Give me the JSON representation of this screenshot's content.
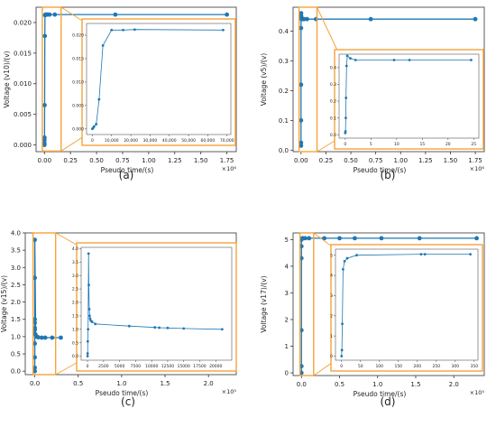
{
  "chart_data": [
    {
      "type": "line",
      "panel_label": "(a)",
      "ylabel": "Voltage (v10)/(v)",
      "xlabel": "Pseudo time/(s)",
      "x_offset_text": "×10⁶",
      "color": "#1f77b4",
      "frame_color": "#f5a33a",
      "xlim": [
        -0.08,
        1.84
      ],
      "ylim": [
        -0.0011,
        0.0225
      ],
      "xticks": [
        0.0,
        0.25,
        0.5,
        0.75,
        1.0,
        1.25,
        1.5,
        1.75
      ],
      "xtick_labels": [
        "0.00",
        "0.25",
        "0.50",
        "0.75",
        "1.00",
        "1.25",
        "1.50",
        "1.75"
      ],
      "yticks": [
        0.0,
        0.005,
        0.01,
        0.015,
        0.02
      ],
      "ytick_labels": [
        "0.000",
        "0.005",
        "0.010",
        "0.015",
        "0.020"
      ],
      "x": [
        0,
        0,
        0,
        0,
        0.001,
        0.002,
        0.004,
        0.006,
        0.01,
        0.02,
        0.03,
        0.05,
        0.1,
        0.68,
        1.75
      ],
      "y": [
        0.0,
        0.0001,
        0.0003,
        0.0008,
        0.0012,
        0.0065,
        0.0178,
        0.0212,
        0.0213,
        0.0213,
        0.0213,
        0.0213,
        0.0213,
        0.0213,
        0.0213
      ],
      "zoom_region": {
        "x": [
          -0.02,
          0.16
        ],
        "y": [
          -0.001,
          0.0225
        ]
      },
      "inset": {
        "xlim": [
          -3000,
          72000
        ],
        "ylim": [
          -0.0012,
          0.0225
        ],
        "xticks": [
          0,
          10000,
          20000,
          30000,
          40000,
          50000,
          60000,
          70000
        ],
        "xtick_labels": [
          "0",
          "10,000",
          "20,000",
          "30,000",
          "40,000",
          "50,000",
          "60,000",
          "70,000"
        ],
        "yticks": [
          0.0,
          0.005,
          0.01,
          0.015,
          0.02
        ],
        "ytick_labels": [
          "0.000",
          "0.005",
          "0.010",
          "0.015",
          "0.020"
        ],
        "x": [
          0,
          400,
          900,
          2000,
          3500,
          5500,
          10000,
          16000,
          22000,
          68000
        ],
        "y": [
          0.0,
          0.0002,
          0.0005,
          0.001,
          0.0063,
          0.0178,
          0.0211,
          0.0211,
          0.0212,
          0.0211
        ]
      }
    },
    {
      "type": "line",
      "panel_label": "(b)",
      "ylabel": "Voltage (v5)/(v)",
      "xlabel": "Pseudo time/(s)",
      "x_offset_text": "×10⁶",
      "color": "#1f77b4",
      "frame_color": "#f5a33a",
      "xlim": [
        -0.08,
        1.84
      ],
      "ylim": [
        -0.005,
        0.48
      ],
      "xticks": [
        0.0,
        0.25,
        0.5,
        0.75,
        1.0,
        1.25,
        1.5,
        1.75
      ],
      "xtick_labels": [
        "0.00",
        "0.25",
        "0.50",
        "0.75",
        "1.00",
        "1.25",
        "1.50",
        "1.75"
      ],
      "yticks": [
        0.0,
        0.1,
        0.2,
        0.3,
        0.4
      ],
      "ytick_labels": [
        "0.0",
        "0.1",
        "0.2",
        "0.3",
        "0.4"
      ],
      "x": [
        0,
        0,
        0,
        0,
        0,
        0.001,
        0.002,
        0.003,
        0.005,
        0.01,
        0.03,
        0.06,
        0.15,
        0.7,
        1.75
      ],
      "y": [
        0.015,
        0.025,
        0.1,
        0.22,
        0.41,
        0.46,
        0.45,
        0.445,
        0.44,
        0.44,
        0.44,
        0.44,
        0.44,
        0.44,
        0.44
      ],
      "zoom_region": {
        "x": [
          -0.02,
          0.16
        ],
        "y": [
          -0.005,
          0.48
        ]
      },
      "inset": {
        "xlim": [
          -1.2,
          26
        ],
        "ylim": [
          -0.02,
          0.48
        ],
        "xticks": [
          0,
          5,
          10,
          15,
          20,
          25
        ],
        "xtick_labels": [
          "0",
          "5",
          "10",
          "15",
          "20",
          "25"
        ],
        "yticks": [
          0.0,
          0.1,
          0.2,
          0.3,
          0.4
        ],
        "ytick_labels": [
          "0.0",
          "0.1",
          "0.2",
          "0.3",
          "0.4"
        ],
        "x": [
          0,
          0.05,
          0.1,
          0.15,
          0.25,
          0.4,
          1.0,
          2.0,
          9.5,
          12.5,
          24.5
        ],
        "y": [
          0.01,
          0.02,
          0.1,
          0.22,
          0.41,
          0.47,
          0.455,
          0.445,
          0.445,
          0.445,
          0.445
        ]
      }
    },
    {
      "type": "line",
      "panel_label": "(c)",
      "ylabel": "Voltage (v15)/(v)",
      "xlabel": "Pseudo time/(s)",
      "x_offset_text": "×10⁵",
      "color": "#1f77b4",
      "frame_color": "#f5a33a",
      "xlim": [
        -0.11,
        2.32
      ],
      "ylim": [
        -0.1,
        4.0
      ],
      "xticks": [
        0.0,
        0.5,
        1.0,
        1.5,
        2.0
      ],
      "xtick_labels": [
        "0.0",
        "0.5",
        "1.0",
        "1.5",
        "2.0"
      ],
      "yticks": [
        0.0,
        0.5,
        1.0,
        1.5,
        2.0,
        2.5,
        3.0,
        3.5,
        4.0
      ],
      "ytick_labels": [
        "0.0",
        "0.5",
        "1.0",
        "1.5",
        "2.0",
        "2.5",
        "3.0",
        "3.5",
        "4.0"
      ],
      "x": [
        0,
        0,
        0,
        0,
        0,
        0,
        0,
        0,
        0,
        0,
        0,
        0.01,
        0.02,
        0.04,
        0.08,
        0.12,
        0.2,
        0.3
      ],
      "y": [
        0.0,
        0.1,
        0.4,
        0.8,
        1.25,
        1.4,
        1.5,
        1.2,
        1.08,
        2.7,
        3.8,
        1.05,
        1.0,
        0.98,
        0.97,
        0.97,
        0.97,
        0.97
      ],
      "zoom_region": {
        "x": [
          -0.02,
          0.24
        ],
        "y": [
          -0.1,
          4.0
        ]
      },
      "inset": {
        "xlim": [
          -1000,
          22500
        ],
        "ylim": [
          -0.15,
          4.05
        ],
        "xticks": [
          0,
          2500,
          5000,
          7500,
          10000,
          12500,
          15000,
          17500,
          20000
        ],
        "xtick_labels": [
          "0",
          "2500",
          "5000",
          "7500",
          "10000",
          "12500",
          "15000",
          "17500",
          "20000"
        ],
        "yticks": [
          0.0,
          0.5,
          1.0,
          1.5,
          2.0,
          2.5,
          3.0,
          3.5,
          4.0
        ],
        "ytick_labels": [
          "0.0",
          "0.5",
          "1.0",
          "1.5",
          "2.0",
          "2.5",
          "3.0",
          "3.5",
          "4.0"
        ],
        "x": [
          0,
          10,
          30,
          80,
          150,
          200,
          260,
          320,
          400,
          500,
          700,
          1200,
          6500,
          10500,
          11200,
          12500,
          15000,
          21000
        ],
        "y": [
          0.0,
          0.1,
          0.55,
          1.0,
          3.82,
          2.65,
          1.75,
          1.5,
          1.4,
          1.32,
          1.28,
          1.2,
          1.12,
          1.07,
          1.06,
          1.05,
          1.03,
          1.0
        ]
      }
    },
    {
      "type": "line",
      "panel_label": "(d)",
      "ylabel": "Voltage (v17)/(v)",
      "xlabel": "Pseudo time/(s)",
      "x_offset_text": "×10⁵",
      "color": "#1f77b4",
      "frame_color": "#f5a33a",
      "xlim": [
        -0.11,
        2.4
      ],
      "ylim": [
        -0.1,
        5.25
      ],
      "xticks": [
        0.0,
        0.5,
        1.0,
        1.5,
        2.0
      ],
      "xtick_labels": [
        "0.0",
        "0.5",
        "1.0",
        "1.5",
        "2.0"
      ],
      "yticks": [
        0,
        1,
        2,
        3,
        4,
        5
      ],
      "ytick_labels": [
        "0",
        "1",
        "2",
        "3",
        "4",
        "5"
      ],
      "x": [
        0,
        0,
        0,
        0,
        0,
        0,
        0.01,
        0.02,
        0.05,
        0.1,
        0.3,
        0.5,
        0.7,
        1.05,
        1.55,
        2.3
      ],
      "y": [
        0.0,
        0.25,
        1.6,
        4.3,
        4.75,
        5.0,
        5.05,
        5.05,
        5.05,
        5.05,
        5.05,
        5.05,
        5.05,
        5.05,
        5.05,
        5.05
      ],
      "zoom_region": {
        "x": [
          -0.02,
          0.16
        ],
        "y": [
          -0.1,
          5.25
        ]
      },
      "inset": {
        "xlim": [
          -16,
          360
        ],
        "ylim": [
          -0.2,
          5.3
        ],
        "xticks": [
          0,
          50,
          100,
          150,
          200,
          250,
          300,
          350
        ],
        "xtick_labels": [
          "0",
          "50",
          "100",
          "150",
          "200",
          "250",
          "300",
          "350"
        ],
        "yticks": [
          0,
          1,
          2,
          3,
          4,
          5
        ],
        "ytick_labels": [
          "0",
          "1",
          "2",
          "3",
          "4",
          "5"
        ],
        "x": [
          0,
          1,
          2,
          4,
          8,
          15,
          40,
          210,
          220,
          340
        ],
        "y": [
          0.0,
          0.3,
          1.6,
          4.3,
          4.7,
          4.85,
          5.0,
          5.05,
          5.05,
          5.05
        ]
      }
    }
  ]
}
